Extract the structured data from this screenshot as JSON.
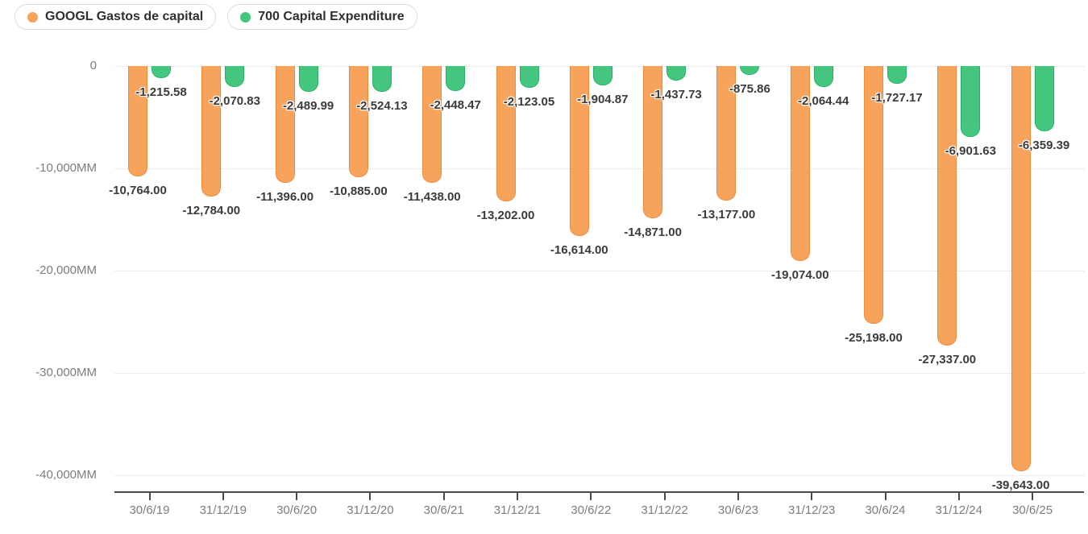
{
  "legend": {
    "items": [
      {
        "label": "GOOGL Gastos de capital",
        "color": "#F8A35C"
      },
      {
        "label": "700 Capital Expenditure",
        "color": "#44C67F"
      }
    ]
  },
  "chart_data": {
    "type": "bar",
    "title": "",
    "orientation": "vertical-negative",
    "categories": [
      "30/6/19",
      "31/12/19",
      "30/6/20",
      "31/12/20",
      "30/6/21",
      "31/12/21",
      "30/6/22",
      "31/12/22",
      "30/6/23",
      "31/12/23",
      "30/6/24",
      "31/12/24",
      "30/6/25"
    ],
    "series": [
      {
        "name": "GOOGL Gastos de capital",
        "color": "#F8A35C",
        "border_color": "#F08B3B",
        "values": [
          -10764.0,
          -12784.0,
          -11396.0,
          -10885.0,
          -11438.0,
          -13202.0,
          -16614.0,
          -14871.0,
          -13177.0,
          -19074.0,
          -25198.0,
          -27337.0,
          -39643.0
        ],
        "labels": [
          "-10,764.00",
          "-12,784.00",
          "-11,396.00",
          "-10,885.00",
          "-11,438.00",
          "-13,202.00",
          "-16,614.00",
          "-14,871.00",
          "-13,177.00",
          "-19,074.00",
          "-25,198.00",
          "-27,337.00",
          "-39,643.00"
        ]
      },
      {
        "name": "700 Capital Expenditure",
        "color": "#44C67F",
        "border_color": "#28B167",
        "values": [
          -1215.58,
          -2070.83,
          -2489.99,
          -2524.13,
          -2448.47,
          -2123.05,
          -1904.87,
          -1437.73,
          -875.86,
          -2064.44,
          -1727.17,
          -6901.63,
          -6359.39
        ],
        "labels": [
          "-1,215.58",
          "-2,070.83",
          "-2,489.99",
          "-2,524.13",
          "-2,448.47",
          "-2,123.05",
          "-1,904.87",
          "-1,437.73",
          "-875.86",
          "-2,064.44",
          "-1,727.17",
          "-6,901.63",
          "-6,359.39"
        ]
      }
    ],
    "y_axis": {
      "tick_labels": [
        "0",
        "-10,000MM",
        "-20,000MM",
        "-30,000MM",
        "-40,000MM"
      ],
      "tick_values": [
        0,
        -10000,
        -20000,
        -30000,
        -40000
      ],
      "ylim": [
        -41600,
        0
      ],
      "unit": "MM",
      "grid": "dotted"
    },
    "x_axis": {
      "labels": [
        "30/6/19",
        "31/12/19",
        "30/6/20",
        "31/12/20",
        "30/6/21",
        "31/12/21",
        "30/6/22",
        "31/12/22",
        "30/6/23",
        "31/12/23",
        "30/6/24",
        "31/12/24",
        "30/6/25"
      ]
    },
    "legend_position": "top-left",
    "data_label_format": "#,##0.00"
  }
}
